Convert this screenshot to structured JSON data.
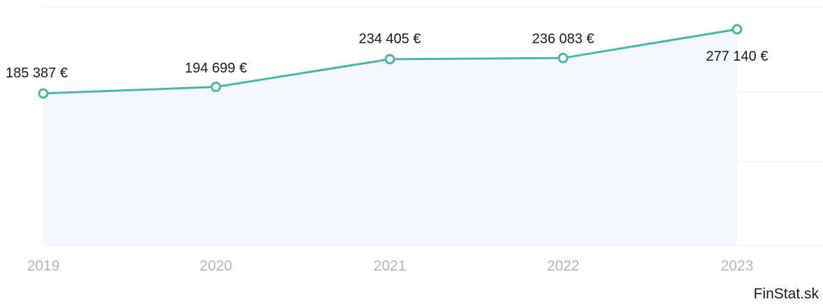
{
  "chart_data": {
    "type": "area",
    "title": "",
    "xlabel": "",
    "ylabel": "",
    "categories": [
      "2019",
      "2020",
      "2021",
      "2022",
      "2023"
    ],
    "series": [
      {
        "values": [
          185387,
          194699,
          234405,
          236083,
          277140
        ],
        "labels": [
          "185 387 €",
          "194 699 €",
          "234 405 €",
          "236 083 €",
          "277 140 €"
        ],
        "color": "#4fb5a4"
      }
    ],
    "grid": true,
    "legend": "none"
  },
  "colors": {
    "line": "#4fb5a4",
    "fill": "#f4f7fb",
    "grid": "#ececec",
    "tick": "#b5b5b5",
    "text": "#1a1a1a"
  },
  "source": "FinStat.sk"
}
